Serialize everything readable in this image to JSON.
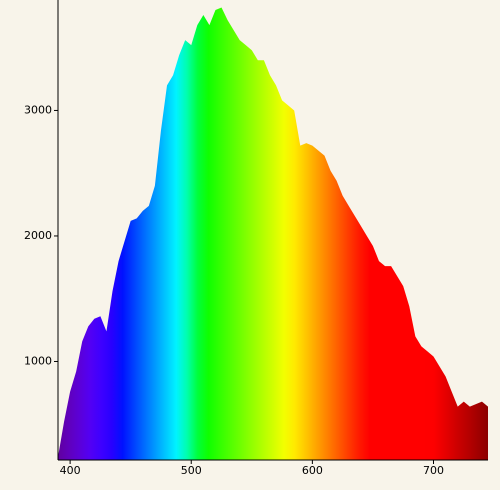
{
  "chart_data": {
    "type": "area",
    "x": [
      390,
      395,
      400,
      405,
      410,
      415,
      420,
      425,
      430,
      435,
      440,
      445,
      450,
      455,
      460,
      465,
      470,
      475,
      480,
      485,
      490,
      495,
      500,
      505,
      510,
      515,
      520,
      525,
      530,
      535,
      540,
      545,
      550,
      555,
      560,
      565,
      570,
      575,
      580,
      585,
      590,
      595,
      600,
      605,
      610,
      615,
      620,
      625,
      630,
      635,
      640,
      645,
      650,
      655,
      660,
      665,
      670,
      675,
      680,
      685,
      690,
      695,
      700,
      705,
      710,
      715,
      720,
      725,
      730,
      735,
      740,
      745
    ],
    "values": [
      240,
      520,
      760,
      920,
      1160,
      1280,
      1340,
      1360,
      1240,
      1560,
      1800,
      1960,
      2120,
      2140,
      2200,
      2240,
      2400,
      2840,
      3200,
      3280,
      3440,
      3560,
      3520,
      3680,
      3760,
      3680,
      3800,
      3820,
      3720,
      3640,
      3560,
      3520,
      3480,
      3400,
      3400,
      3280,
      3200,
      3080,
      3040,
      3000,
      2720,
      2740,
      2720,
      2680,
      2640,
      2520,
      2440,
      2320,
      2240,
      2160,
      2080,
      2000,
      1920,
      1800,
      1760,
      1760,
      1680,
      1600,
      1440,
      1200,
      1120,
      1080,
      1040,
      960,
      880,
      760,
      640,
      680,
      640,
      660,
      680,
      640
    ],
    "xlim": [
      390,
      745
    ],
    "ylim": [
      215,
      3880
    ],
    "xticks": [
      400,
      500,
      600,
      700
    ],
    "yticks": [
      1000,
      2000,
      3000
    ]
  }
}
